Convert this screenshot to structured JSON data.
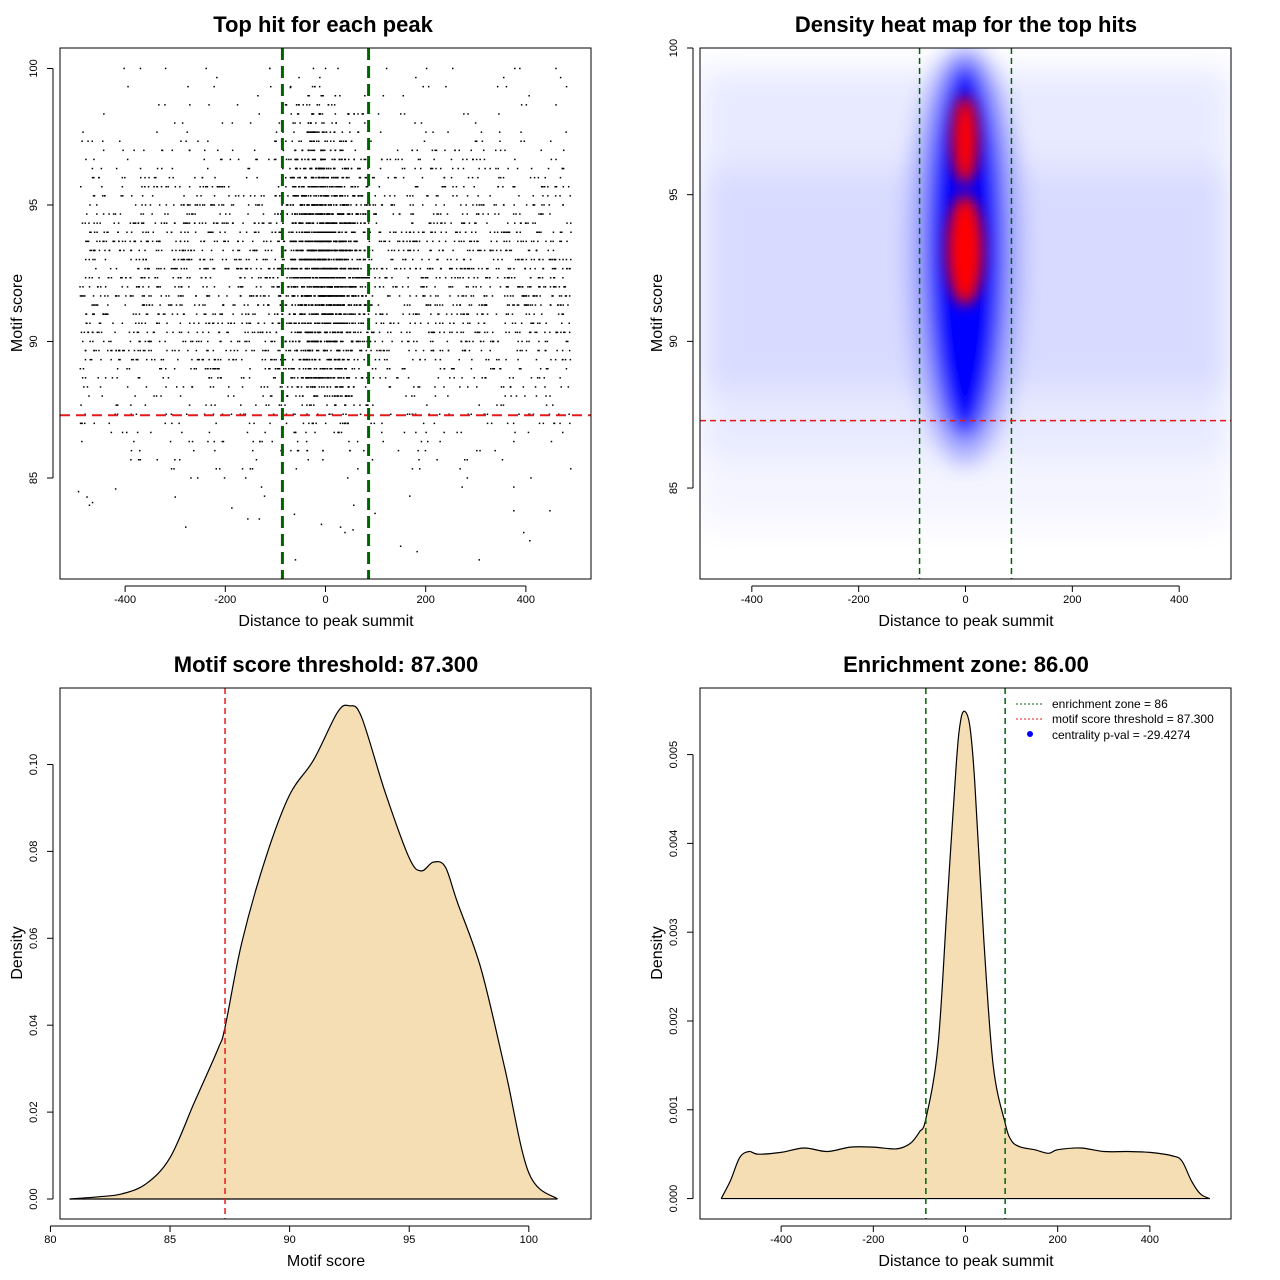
{
  "chart_data": [
    {
      "id": "scatter",
      "type": "scatter",
      "title": "Top hit for each peak",
      "xlabel": "Distance to peak summit",
      "ylabel": "Motif score",
      "xlim": [
        -530,
        530
      ],
      "ylim": [
        81.3,
        100.75
      ],
      "xticks": [
        -400,
        -200,
        0,
        200,
        400
      ],
      "yticks": [
        85,
        90,
        95,
        100
      ],
      "xtick_labels": [
        "-400",
        "-200",
        "0",
        "200",
        "400"
      ],
      "ytick_labels": [
        "85",
        "90",
        "95",
        "100"
      ],
      "threshold_y": 87.3,
      "zone_x": [
        -86,
        86
      ],
      "threshold_color": "#e31a1c",
      "zone_color": "#006400",
      "point_color": "#000000",
      "sampled_points": [
        [
          -493,
          84.5
        ],
        [
          -476,
          84.3
        ],
        [
          -465,
          84.1
        ],
        [
          -419,
          84.6
        ],
        [
          -300,
          84.3
        ],
        [
          -279,
          83.2
        ],
        [
          -187,
          83.9
        ],
        [
          -155,
          83.5
        ],
        [
          -132,
          83.5
        ],
        [
          -60,
          82.0
        ],
        [
          -8,
          83.3
        ],
        [
          30,
          83.2
        ],
        [
          55,
          83.1
        ],
        [
          99,
          83.7
        ],
        [
          150,
          82.5
        ],
        [
          183,
          82.3
        ],
        [
          307,
          82.0
        ],
        [
          376,
          83.8
        ],
        [
          408,
          82.7
        ],
        [
          448,
          83.8
        ],
        [
          -402,
          100.0
        ],
        [
          -319,
          100.0
        ],
        [
          -238,
          100.0
        ],
        [
          -111,
          100.0
        ],
        [
          -70,
          99.3
        ],
        [
          -24,
          100.0
        ],
        [
          0,
          100.0
        ],
        [
          25,
          100.0
        ],
        [
          122,
          100.0
        ],
        [
          202,
          100.0
        ],
        [
          254,
          100.0
        ],
        [
          378,
          100.0
        ],
        [
          460,
          100.0
        ]
      ]
    },
    {
      "id": "heatmap",
      "type": "heatmap",
      "title": "Density heat map for the top hits",
      "xlabel": "Distance to peak summit",
      "ylabel": "Motif score",
      "xlim": [
        -497,
        497
      ],
      "ylim": [
        81.9,
        100.0
      ],
      "xticks": [
        -400,
        -200,
        0,
        200,
        400
      ],
      "yticks": [
        85,
        90,
        95,
        100
      ],
      "xtick_labels": [
        "-400",
        "-200",
        "0",
        "200",
        "400"
      ],
      "ytick_labels": [
        "85",
        "90",
        "95",
        "100"
      ],
      "threshold_y": 87.3,
      "zone_x": [
        -86,
        86
      ],
      "threshold_color": "#e31a1c",
      "zone_color": "#006400",
      "colors": {
        "low": "#ffffff",
        "mid": "#0000ff",
        "high": "#ff0000"
      }
    },
    {
      "id": "score_density",
      "type": "area",
      "title": "Motif score threshold: 87.300",
      "xlabel": "Motif score",
      "ylabel": "Density",
      "xlim": [
        80.4,
        102.6
      ],
      "ylim": [
        -0.0046,
        0.1176
      ],
      "xticks": [
        80,
        85,
        90,
        95,
        100
      ],
      "yticks": [
        0.0,
        0.02,
        0.04,
        0.06,
        0.08,
        0.1
      ],
      "xtick_labels": [
        "80",
        "85",
        "90",
        "95",
        "100"
      ],
      "ytick_labels": [
        "0.00",
        "0.02",
        "0.04",
        "0.06",
        "0.08",
        "0.10"
      ],
      "threshold_x": 87.3,
      "threshold_color": "#e31a1c",
      "fill_color": "#f5deb3",
      "x": [
        80.8,
        82.0,
        83.0,
        84.0,
        85.0,
        86.0,
        87.0,
        87.3,
        88.0,
        89.0,
        90.0,
        91.0,
        92.0,
        92.5,
        93.0,
        94.0,
        95.0,
        95.5,
        96.0,
        96.5,
        97.0,
        98.0,
        99.0,
        100.0,
        101.2
      ],
      "y": [
        0.0,
        0.0005,
        0.0012,
        0.0035,
        0.0095,
        0.022,
        0.0345,
        0.0395,
        0.059,
        0.0785,
        0.093,
        0.101,
        0.112,
        0.1135,
        0.111,
        0.0935,
        0.0785,
        0.0755,
        0.0775,
        0.0765,
        0.0685,
        0.053,
        0.03,
        0.006,
        0.0
      ]
    },
    {
      "id": "distance_density",
      "type": "area",
      "title": "Enrichment zone: 86.00",
      "xlabel": "Distance to peak summit",
      "ylabel": "Density",
      "xlim": [
        -576,
        576
      ],
      "ylim": [
        -0.00023,
        0.00575
      ],
      "xticks": [
        -400,
        -200,
        0,
        200,
        400
      ],
      "yticks": [
        0.0,
        0.001,
        0.002,
        0.003,
        0.004,
        0.005
      ],
      "xtick_labels": [
        "-400",
        "-200",
        "0",
        "200",
        "400"
      ],
      "ytick_labels": [
        "0.000",
        "0.001",
        "0.002",
        "0.003",
        "0.004",
        "0.005"
      ],
      "zone_x": [
        -86,
        86
      ],
      "zone_color": "#006400",
      "fill_color": "#f5deb3",
      "x": [
        -530,
        -510,
        -490,
        -470,
        -450,
        -400,
        -350,
        -300,
        -250,
        -200,
        -150,
        -120,
        -100,
        -86,
        -60,
        -40,
        -20,
        -10,
        0,
        10,
        20,
        40,
        60,
        86,
        100,
        120,
        150,
        180,
        200,
        250,
        300,
        350,
        400,
        450,
        470,
        490,
        510,
        530
      ],
      "y": [
        0.0,
        0.0002,
        0.00046,
        0.00053,
        0.0005,
        0.00052,
        0.00057,
        0.00053,
        0.00058,
        0.00058,
        0.00056,
        0.00062,
        0.00075,
        0.0009,
        0.0017,
        0.0033,
        0.0049,
        0.0054,
        0.00548,
        0.0053,
        0.0047,
        0.0029,
        0.0015,
        0.00085,
        0.00065,
        0.00058,
        0.00055,
        0.00051,
        0.00055,
        0.00057,
        0.00053,
        0.00053,
        0.00052,
        0.00048,
        0.00042,
        0.0002,
        5e-05,
        0.0
      ]
    }
  ],
  "legend": [
    {
      "label": "enrichment zone = 86",
      "style": "dotted-line",
      "color": "#006400"
    },
    {
      "label": "motif score threshold = 87.300",
      "style": "dotted-line",
      "color": "#e31a1c"
    },
    {
      "label": "centrality p-val = -29.4274",
      "style": "point",
      "color": "#0000ff"
    }
  ]
}
